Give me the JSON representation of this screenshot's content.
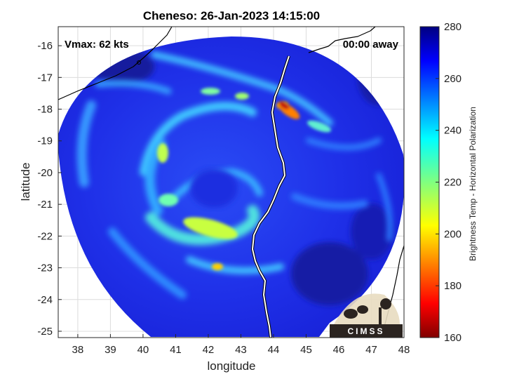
{
  "title": "Cheneso: 26-Jan-2023 14:15:00",
  "vmax_label": "Vmax: 62 kts",
  "away_label": "00:00 away",
  "xlabel": "longitude",
  "ylabel": "latitude",
  "colorbar_label": "Brightness Temp - Horizontal Polarization",
  "logo_text": "CIMSS",
  "x_ticks": [
    "38",
    "39",
    "40",
    "41",
    "42",
    "43",
    "44",
    "45",
    "46",
    "47",
    "48"
  ],
  "y_ticks": [
    "-16",
    "-17",
    "-18",
    "-19",
    "-20",
    "-21",
    "-22",
    "-23",
    "-24",
    "-25"
  ],
  "colorbar_ticks": [
    "160",
    "180",
    "200",
    "220",
    "240",
    "260",
    "280"
  ],
  "chart_data": {
    "type": "heatmap",
    "title": "Cheneso: 26-Jan-2023 14:15:00",
    "xlabel": "longitude",
    "ylabel": "latitude",
    "xlim": [
      37.4,
      48
    ],
    "ylim": [
      -25.2,
      -15.4
    ],
    "x_ticks": [
      38,
      39,
      40,
      41,
      42,
      43,
      44,
      45,
      46,
      47,
      48
    ],
    "y_ticks": [
      -16,
      -17,
      -18,
      -19,
      -20,
      -21,
      -22,
      -23,
      -24,
      -25
    ],
    "colorbar": {
      "label": "Brightness Temp - Horizontal Polarization",
      "range": [
        160,
        280
      ],
      "ticks": [
        160,
        180,
        200,
        220,
        240,
        260,
        280
      ],
      "colormap": "jet"
    },
    "grid": true,
    "annotations": [
      "Vmax: 62 kts",
      "00:00 away"
    ]
  },
  "colors": {
    "deep_blue": "#1a1adc",
    "coast": "#ffffff",
    "cold_core": "#a01010"
  }
}
